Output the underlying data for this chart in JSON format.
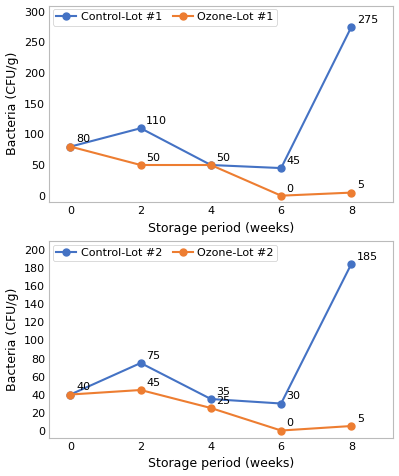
{
  "x": [
    0,
    2,
    4,
    6,
    8
  ],
  "plot1": {
    "control": [
      80,
      110,
      50,
      45,
      275
    ],
    "ozone": [
      80,
      50,
      50,
      0,
      5
    ],
    "control_label": "Control-Lot #1",
    "ozone_label": "Ozone-Lot #1",
    "control_annotations": [
      [
        0,
        80,
        "80"
      ],
      [
        2,
        110,
        "110"
      ],
      [
        6,
        45,
        "45"
      ],
      [
        8,
        275,
        "275"
      ]
    ],
    "ozone_annotations": [
      [
        2,
        50,
        "50"
      ],
      [
        4,
        50,
        "50"
      ],
      [
        6,
        0,
        "0"
      ],
      [
        8,
        5,
        "5"
      ]
    ],
    "ylim": [
      -10,
      310
    ],
    "yticks": [
      0,
      50,
      100,
      150,
      200,
      250,
      300
    ]
  },
  "plot2": {
    "control": [
      40,
      75,
      35,
      30,
      185
    ],
    "ozone": [
      40,
      45,
      25,
      0,
      5
    ],
    "control_label": "Control-Lot #2",
    "ozone_label": "Ozone-Lot #2",
    "control_annotations": [
      [
        0,
        40,
        "40"
      ],
      [
        2,
        75,
        "75"
      ],
      [
        4,
        35,
        "35"
      ],
      [
        6,
        30,
        "30"
      ],
      [
        8,
        185,
        "185"
      ]
    ],
    "ozone_annotations": [
      [
        2,
        45,
        "45"
      ],
      [
        4,
        25,
        "25"
      ],
      [
        6,
        0,
        "0"
      ],
      [
        8,
        5,
        "5"
      ]
    ],
    "ylim": [
      -8,
      210
    ],
    "yticks": [
      0,
      20,
      40,
      60,
      80,
      100,
      120,
      140,
      160,
      180,
      200
    ]
  },
  "control_color": "#4472C4",
  "ozone_color": "#ED7D31",
  "xlabel": "Storage period (weeks)",
  "ylabel": "Bacteria (CFU/g)",
  "xticks": [
    0,
    2,
    4,
    6,
    8
  ],
  "marker": "o",
  "linewidth": 1.5,
  "markersize": 5,
  "annotation_fontsize": 8,
  "legend_fontsize": 8,
  "axis_label_fontsize": 9,
  "tick_fontsize": 8,
  "bg_color": "#FFFFFF",
  "panel_bg": "#FFFFFF",
  "spine_color": "#BBBBBB",
  "grid_color": "#E0E0E0"
}
